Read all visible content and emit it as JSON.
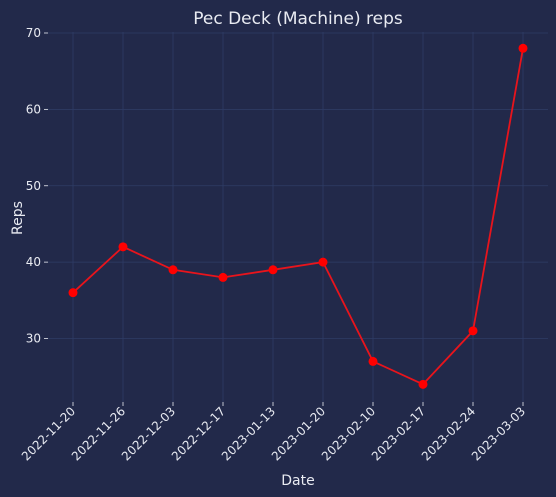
{
  "chart_data": {
    "type": "line",
    "title": "Pec Deck (Machine) reps",
    "xlabel": "Date",
    "ylabel": "Reps",
    "x": [
      "2022-11-20",
      "2022-11-26",
      "2022-12-03",
      "2022-12-17",
      "2023-01-13",
      "2023-01-20",
      "2023-02-10",
      "2023-02-17",
      "2023-02-24",
      "2023-03-03"
    ],
    "values": [
      36,
      42,
      39,
      38,
      39,
      40,
      27,
      24,
      31,
      68
    ],
    "yticks": [
      30,
      40,
      50,
      60,
      70
    ],
    "ylim": [
      22,
      70
    ],
    "grid": true,
    "line_color": "#e8141c",
    "marker_color": "#ff0000",
    "background_color": "#22294a"
  }
}
